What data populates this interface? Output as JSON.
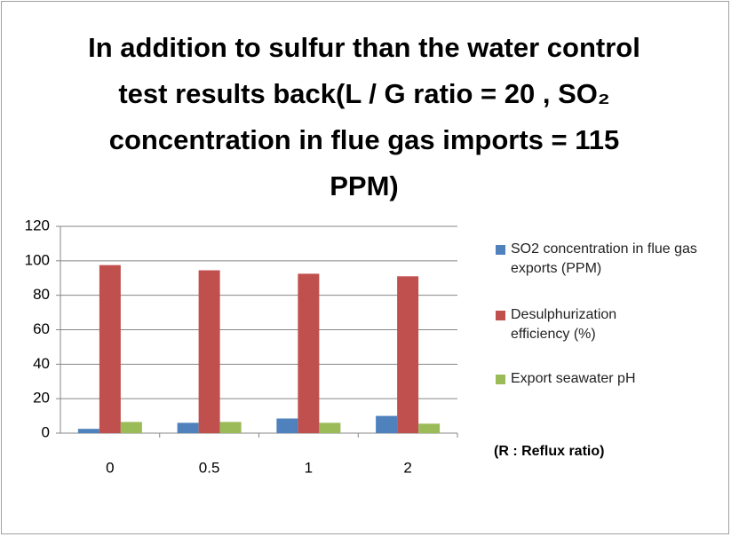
{
  "chart_data": {
    "type": "bar",
    "title": "In addition to sulfur than the water control test results back(L / G ratio = 20 , SO₂ concentration in flue gas imports = 115 PPM)",
    "annotation": "(R : Reflux ratio)",
    "categories": [
      "0",
      "0.5",
      "1",
      "2"
    ],
    "series": [
      {
        "name": "SO2 concentration in flue gas exports (PPM)",
        "color": "#4f81bd",
        "values": [
          2.5,
          6,
          8.5,
          10
        ]
      },
      {
        "name": "Desulphurization efficiency (%)",
        "color": "#c0504d",
        "values": [
          97.5,
          94.5,
          92.5,
          91
        ]
      },
      {
        "name": "Export seawater pH",
        "color": "#9bbb59",
        "values": [
          6.5,
          6.5,
          6,
          5.5
        ]
      }
    ],
    "ylim": [
      0,
      120
    ],
    "yticks": [
      0,
      20,
      40,
      60,
      80,
      100,
      120
    ],
    "grid": true,
    "legend": "right"
  }
}
